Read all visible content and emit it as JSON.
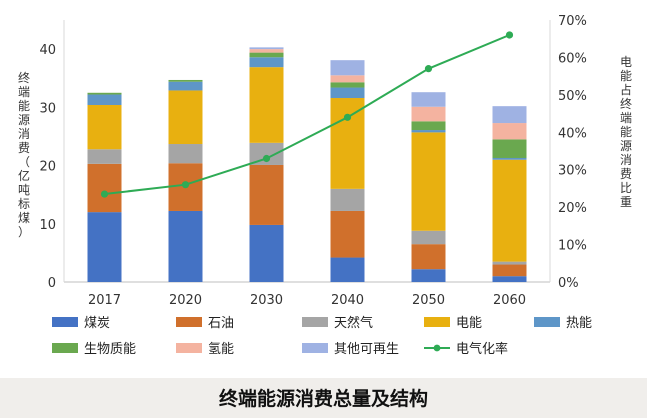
{
  "chart_data": {
    "type": "bar",
    "stacked": true,
    "categories": [
      "2017",
      "2020",
      "2030",
      "2040",
      "2050",
      "2060"
    ],
    "series": [
      {
        "name": "煤炭",
        "color": "#4472c4",
        "values": [
          12.0,
          12.2,
          9.8,
          4.2,
          2.2,
          1.0
        ]
      },
      {
        "name": "石油",
        "color": "#d0702c",
        "values": [
          8.3,
          8.2,
          10.3,
          8.0,
          4.3,
          2.0
        ]
      },
      {
        "name": "天然气",
        "color": "#a5a5a5",
        "values": [
          2.5,
          3.3,
          3.8,
          3.8,
          2.3,
          0.5
        ]
      },
      {
        "name": "电能",
        "color": "#e8b010",
        "values": [
          7.6,
          9.2,
          13.0,
          15.6,
          16.9,
          17.5
        ]
      },
      {
        "name": "热能",
        "color": "#5e96c8",
        "values": [
          1.8,
          1.5,
          1.7,
          1.8,
          0.4,
          0.3
        ]
      },
      {
        "name": "生物质能",
        "color": "#6aa84f",
        "values": [
          0.3,
          0.3,
          0.8,
          0.9,
          1.5,
          3.2
        ]
      },
      {
        "name": "氢能",
        "color": "#f4b3a0",
        "values": [
          0.0,
          0.0,
          0.6,
          1.2,
          2.5,
          2.8
        ]
      },
      {
        "name": "其他可再生",
        "color": "#9fb2e3",
        "values": [
          0.0,
          0.0,
          0.3,
          2.6,
          2.5,
          2.9
        ]
      }
    ],
    "line_series": {
      "name": "电气化率",
      "color": "#2eab55",
      "values": [
        23.5,
        26,
        33,
        44,
        57,
        66
      ]
    },
    "ylabel": "终端能源消费（亿吨标煤）",
    "y2label": "电能占终端能源消费比重",
    "ylim": [
      0,
      45
    ],
    "yticks": [
      "0",
      "10",
      "20",
      "30",
      "40"
    ],
    "y2lim": [
      0,
      70
    ],
    "y2ticks": [
      "0%",
      "10%",
      "20%",
      "30%",
      "40%",
      "50%",
      "60%",
      "70%"
    ],
    "legend_position": "bottom",
    "caption": "终端能源消费总量及结构"
  }
}
